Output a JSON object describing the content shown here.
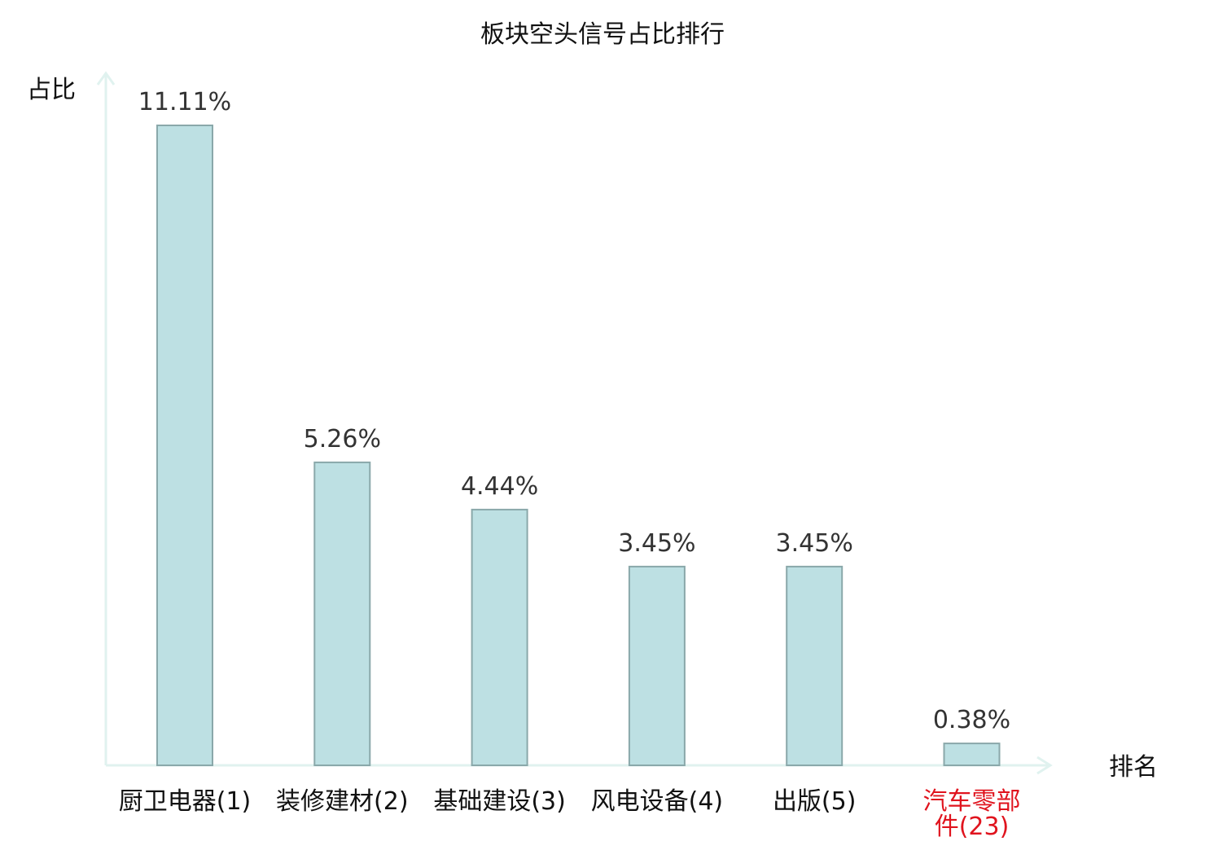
{
  "chart_data": {
    "type": "bar",
    "title": "板块空头信号占比排行",
    "ylabel": "占比",
    "xlabel": "排名",
    "categories": [
      "厨卫电器(1)",
      "装修建材(2)",
      "基础建设(3)",
      "风电设备(4)",
      "出版(5)",
      [
        "汽车零部",
        "件(23)"
      ]
    ],
    "values": [
      11.11,
      5.26,
      4.44,
      3.45,
      3.45,
      0.38
    ],
    "value_labels": [
      "11.11%",
      "5.26%",
      "4.44%",
      "3.45%",
      "3.45%",
      "0.38%"
    ],
    "highlight_index": 5,
    "ylim": [
      0,
      12
    ],
    "grid": false,
    "colors": {
      "bar_fill": "#bde0e3",
      "bar_stroke": "#8aa8aa",
      "axis": "#e0f2ef",
      "text": "#111111",
      "value_label": "#333333",
      "highlight": "#e0141e"
    }
  }
}
